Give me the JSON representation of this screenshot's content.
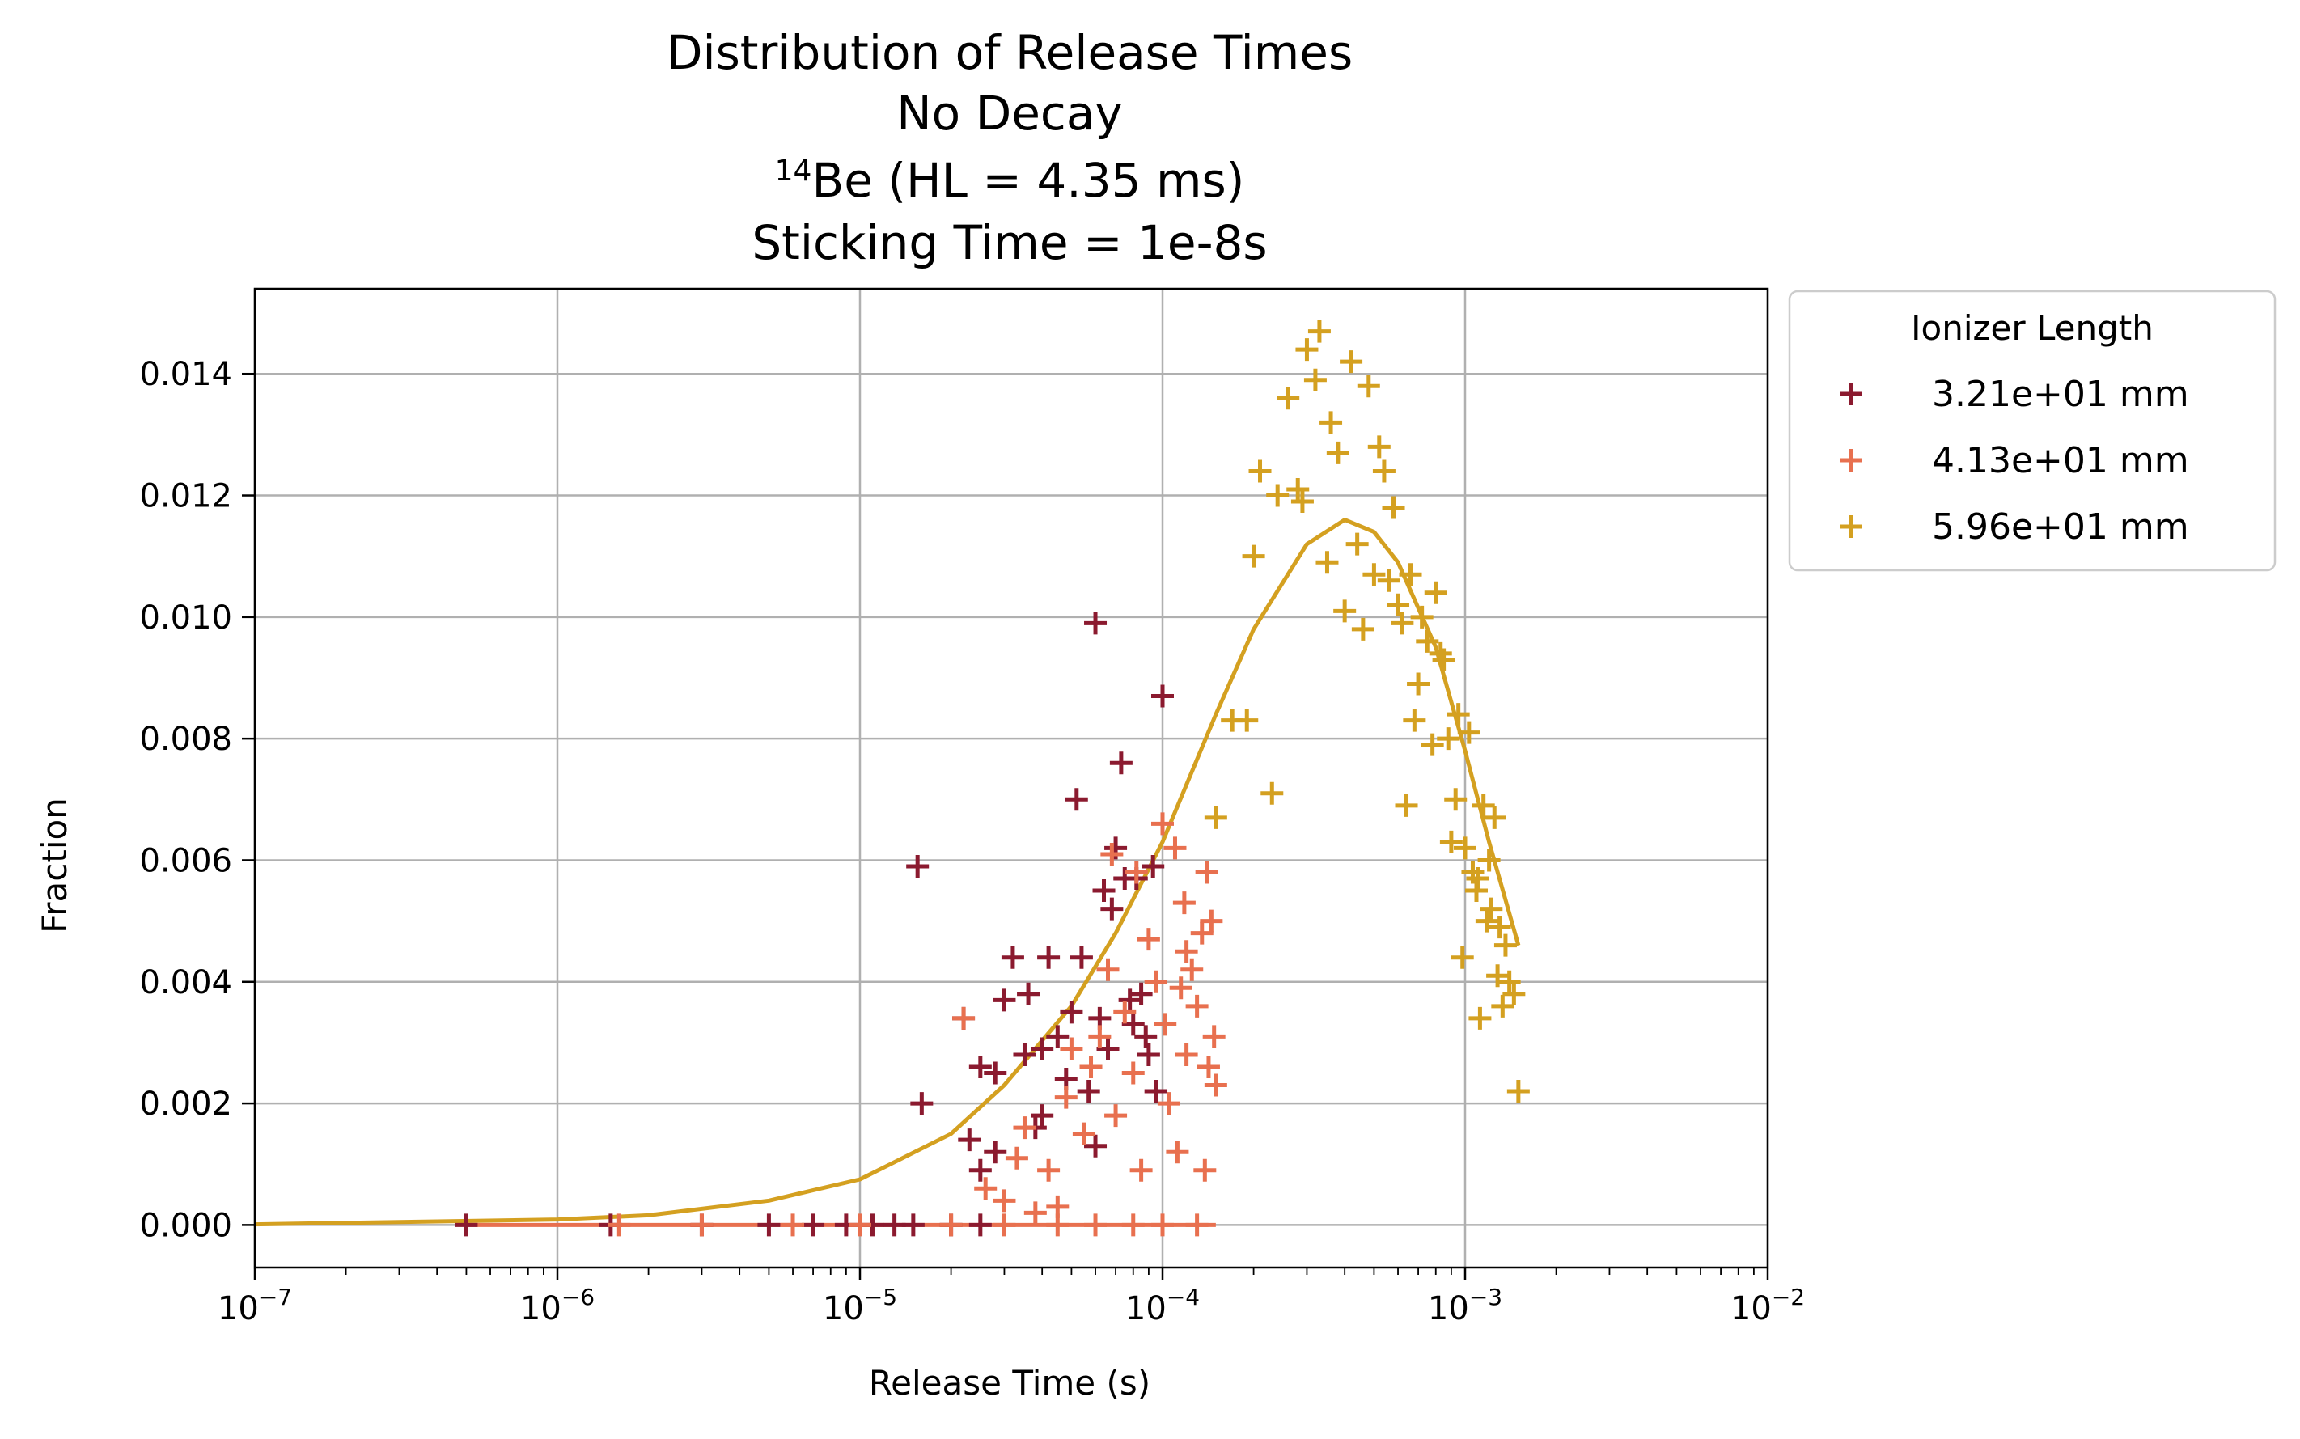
{
  "chart_data": {
    "type": "scatter",
    "title_lines": [
      "Distribution of Release Times",
      "No Decay"
    ],
    "isotope": {
      "mass_number": "14",
      "rest": "Be (HL = 4.35 ms)"
    },
    "title_last": "Sticking Time = 1e-8s",
    "xlabel": "Release Time (s)",
    "ylabel": "Fraction",
    "xscale": "log",
    "xlim": [
      1e-07,
      0.01
    ],
    "ylim": [
      -0.0007,
      0.0154
    ],
    "x_ticks": [
      {
        "value": 1e-07,
        "base": "10",
        "exp": "−7"
      },
      {
        "value": 1e-06,
        "base": "10",
        "exp": "−6"
      },
      {
        "value": 1e-05,
        "base": "10",
        "exp": "−5"
      },
      {
        "value": 0.0001,
        "base": "10",
        "exp": "−4"
      },
      {
        "value": 0.001,
        "base": "10",
        "exp": "−3"
      },
      {
        "value": 0.01,
        "base": "10",
        "exp": "−2"
      }
    ],
    "y_ticks": [
      {
        "value": 0.0,
        "label": "0.000"
      },
      {
        "value": 0.002,
        "label": "0.002"
      },
      {
        "value": 0.004,
        "label": "0.004"
      },
      {
        "value": 0.006,
        "label": "0.006"
      },
      {
        "value": 0.008,
        "label": "0.008"
      },
      {
        "value": 0.01,
        "label": "0.010"
      },
      {
        "value": 0.012,
        "label": "0.012"
      },
      {
        "value": 0.014,
        "label": "0.014"
      }
    ],
    "grid": true,
    "legend": {
      "title": "Ionizer Length",
      "placement": "outside-upper-right",
      "entries": [
        {
          "label": "3.21e+01 mm",
          "color": "#8b1a2f"
        },
        {
          "label": "4.13e+01 mm",
          "color": "#e8704f"
        },
        {
          "label": "5.96e+01 mm",
          "color": "#d4a020"
        }
      ]
    },
    "series": [
      {
        "name": "3.21e+01 mm",
        "color": "#8b1a2f",
        "marker": "plus",
        "points": [
          [
            5e-07,
            0
          ],
          [
            1.5e-06,
            0
          ],
          [
            3e-06,
            0
          ],
          [
            5e-06,
            0
          ],
          [
            7e-06,
            0
          ],
          [
            9e-06,
            0
          ],
          [
            1.1e-05,
            0
          ],
          [
            1.3e-05,
            0
          ],
          [
            1.5e-05,
            0
          ],
          [
            2e-05,
            0
          ],
          [
            2.5e-05,
            0
          ],
          [
            1.55e-05,
            0.0059
          ],
          [
            1.6e-05,
            0.002
          ],
          [
            2.2e-05,
            0.0034
          ],
          [
            2.3e-05,
            0.0014
          ],
          [
            2.5e-05,
            0.0026
          ],
          [
            2.8e-05,
            0.0025
          ],
          [
            2.8e-05,
            0.0012
          ],
          [
            3e-05,
            0.0037
          ],
          [
            3.2e-05,
            0.0044
          ],
          [
            3.5e-05,
            0.0028
          ],
          [
            3.6e-05,
            0.0038
          ],
          [
            3.8e-05,
            0.0016
          ],
          [
            4e-05,
            0.0029
          ],
          [
            4.2e-05,
            0.0044
          ],
          [
            4.5e-05,
            0.0031
          ],
          [
            4.8e-05,
            0.0024
          ],
          [
            5e-05,
            0.0035
          ],
          [
            5.2e-05,
            0.007
          ],
          [
            5.4e-05,
            0.0044
          ],
          [
            5.7e-05,
            0.0022
          ],
          [
            6e-05,
            0.0099
          ],
          [
            6.2e-05,
            0.0034
          ],
          [
            6.4e-05,
            0.0055
          ],
          [
            6.6e-05,
            0.0029
          ],
          [
            6.8e-05,
            0.0052
          ],
          [
            7e-05,
            0.0062
          ],
          [
            7.3e-05,
            0.0076
          ],
          [
            7.5e-05,
            0.0057
          ],
          [
            7.8e-05,
            0.0037
          ],
          [
            8e-05,
            0.0033
          ],
          [
            8.2e-05,
            0.0057
          ],
          [
            8.5e-05,
            0.0038
          ],
          [
            8.8e-05,
            0.0031
          ],
          [
            9e-05,
            0.0028
          ],
          [
            9.3e-05,
            0.0059
          ],
          [
            9.5e-05,
            0.0022
          ],
          [
            0.0001,
            0.0087
          ],
          [
            2.5e-05,
            0.0009
          ],
          [
            4e-05,
            0.0018
          ],
          [
            6e-05,
            0.0013
          ]
        ]
      },
      {
        "name": "4.13e+01 mm",
        "color": "#e8704f",
        "marker": "plus",
        "line_at_zero": [
          5e-07,
          0.00015
        ],
        "points": [
          [
            1.6e-06,
            0
          ],
          [
            3e-06,
            0
          ],
          [
            6e-06,
            0
          ],
          [
            1e-05,
            0
          ],
          [
            2e-05,
            0
          ],
          [
            3e-05,
            0
          ],
          [
            4.5e-05,
            0
          ],
          [
            6e-05,
            0
          ],
          [
            8e-05,
            0
          ],
          [
            0.0001,
            0
          ],
          [
            0.00013,
            0
          ],
          [
            2.2e-05,
            0.0034
          ],
          [
            2.6e-05,
            0.0006
          ],
          [
            3e-05,
            0.0004
          ],
          [
            3.3e-05,
            0.0011
          ],
          [
            3.5e-05,
            0.0016
          ],
          [
            3.8e-05,
            0.0002
          ],
          [
            4.2e-05,
            0.0009
          ],
          [
            4.5e-05,
            0.0003
          ],
          [
            4.8e-05,
            0.0021
          ],
          [
            5e-05,
            0.0029
          ],
          [
            5.5e-05,
            0.0015
          ],
          [
            5.8e-05,
            0.0026
          ],
          [
            6.2e-05,
            0.0031
          ],
          [
            6.6e-05,
            0.0042
          ],
          [
            6.8e-05,
            0.0061
          ],
          [
            7e-05,
            0.0018
          ],
          [
            7.5e-05,
            0.0035
          ],
          [
            8e-05,
            0.0025
          ],
          [
            8.2e-05,
            0.0058
          ],
          [
            8.5e-05,
            0.0009
          ],
          [
            9e-05,
            0.0047
          ],
          [
            9.5e-05,
            0.004
          ],
          [
            0.0001,
            0.0066
          ],
          [
            0.000102,
            0.0033
          ],
          [
            0.000105,
            0.002
          ],
          [
            0.00011,
            0.0062
          ],
          [
            0.000112,
            0.0012
          ],
          [
            0.000115,
            0.0039
          ],
          [
            0.000118,
            0.0053
          ],
          [
            0.00012,
            0.0028
          ],
          [
            0.000125,
            0.0042
          ],
          [
            0.00013,
            0.0036
          ],
          [
            0.000135,
            0.0048
          ],
          [
            0.000138,
            0.0009
          ],
          [
            0.00014,
            0.0058
          ],
          [
            0.000142,
            0.0026
          ],
          [
            0.000145,
            0.005
          ],
          [
            0.000148,
            0.0031
          ],
          [
            0.00015,
            0.0023
          ],
          [
            0.00012,
            0.0045
          ]
        ]
      },
      {
        "name": "5.96e+01 mm",
        "color": "#d4a020",
        "marker": "plus",
        "points": [
          [
            0.00015,
            0.0067
          ],
          [
            0.00017,
            0.0083
          ],
          [
            0.00019,
            0.0083
          ],
          [
            0.0002,
            0.011
          ],
          [
            0.00021,
            0.0124
          ],
          [
            0.00023,
            0.0071
          ],
          [
            0.00024,
            0.012
          ],
          [
            0.00026,
            0.0136
          ],
          [
            0.00028,
            0.0121
          ],
          [
            0.00029,
            0.0119
          ],
          [
            0.0003,
            0.0144
          ],
          [
            0.00032,
            0.0139
          ],
          [
            0.00033,
            0.0147
          ],
          [
            0.00035,
            0.0109
          ],
          [
            0.00036,
            0.0132
          ],
          [
            0.00038,
            0.0127
          ],
          [
            0.0004,
            0.0101
          ],
          [
            0.00042,
            0.0142
          ],
          [
            0.00044,
            0.0112
          ],
          [
            0.00046,
            0.0098
          ],
          [
            0.00048,
            0.0138
          ],
          [
            0.0005,
            0.0107
          ],
          [
            0.00052,
            0.0128
          ],
          [
            0.00054,
            0.0124
          ],
          [
            0.00056,
            0.0106
          ],
          [
            0.00058,
            0.0118
          ],
          [
            0.0006,
            0.0102
          ],
          [
            0.00062,
            0.0099
          ],
          [
            0.00064,
            0.0069
          ],
          [
            0.00066,
            0.0107
          ],
          [
            0.00068,
            0.0083
          ],
          [
            0.0007,
            0.0089
          ],
          [
            0.00072,
            0.01
          ],
          [
            0.00075,
            0.0096
          ],
          [
            0.00078,
            0.0079
          ],
          [
            0.0008,
            0.0104
          ],
          [
            0.00083,
            0.0094
          ],
          [
            0.00085,
            0.0093
          ],
          [
            0.00088,
            0.008
          ],
          [
            0.0009,
            0.0063
          ],
          [
            0.00093,
            0.007
          ],
          [
            0.00095,
            0.0084
          ],
          [
            0.00098,
            0.0044
          ],
          [
            0.001,
            0.0062
          ],
          [
            0.00103,
            0.0081
          ],
          [
            0.00106,
            0.0058
          ],
          [
            0.00109,
            0.0055
          ],
          [
            0.00112,
            0.0034
          ],
          [
            0.00115,
            0.0069
          ],
          [
            0.00118,
            0.005
          ],
          [
            0.0012,
            0.006
          ],
          [
            0.00125,
            0.0067
          ],
          [
            0.00128,
            0.0041
          ],
          [
            0.0013,
            0.0049
          ],
          [
            0.00133,
            0.0036
          ],
          [
            0.00136,
            0.0046
          ],
          [
            0.0014,
            0.004
          ],
          [
            0.00145,
            0.0038
          ],
          [
            0.0015,
            0.0022
          ],
          [
            0.0011,
            0.0057
          ],
          [
            0.00122,
            0.0052
          ]
        ]
      }
    ],
    "fit_curve": {
      "color": "#d4a020",
      "points": [
        [
          1e-07,
          1e-05
        ],
        [
          1e-06,
          9e-05
        ],
        [
          2e-06,
          0.00016
        ],
        [
          5e-06,
          0.0004
        ],
        [
          1e-05,
          0.00075
        ],
        [
          2e-05,
          0.0015
        ],
        [
          3e-05,
          0.0023
        ],
        [
          5e-05,
          0.0036
        ],
        [
          7e-05,
          0.0048
        ],
        [
          0.0001,
          0.0063
        ],
        [
          0.00015,
          0.0084
        ],
        [
          0.0002,
          0.0098
        ],
        [
          0.0003,
          0.0112
        ],
        [
          0.0004,
          0.0116
        ],
        [
          0.0005,
          0.0114
        ],
        [
          0.0006,
          0.0109
        ],
        [
          0.0008,
          0.0095
        ],
        [
          0.001,
          0.0078
        ],
        [
          0.0012,
          0.0063
        ],
        [
          0.0015,
          0.0046
        ]
      ]
    }
  }
}
